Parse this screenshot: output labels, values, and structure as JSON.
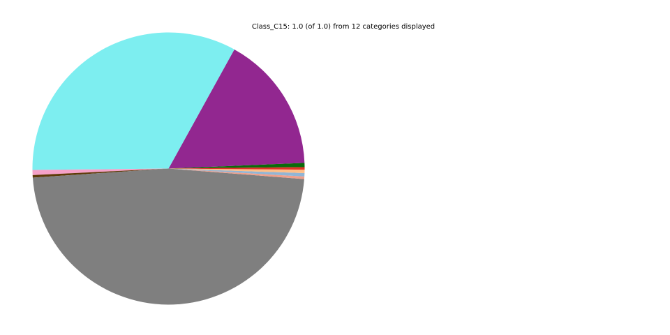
{
  "figure": {
    "background_color": "#ffffff"
  },
  "chart_data": {
    "type": "pie",
    "title": "Class_C15: 1.0 (of 1.0) from 12 categories displayed",
    "total_value": 1.0,
    "categories_stated_in_title": 12,
    "visible_slice_count": 10,
    "legend": "none",
    "axis": "none",
    "start_angle_deg": 0.6,
    "direction": "counterclockwise",
    "slices": [
      {
        "label": "slice-1-dark-green",
        "value": 0.005,
        "color": "#0a6b0a"
      },
      {
        "label": "slice-2-purple",
        "value": 0.163,
        "color": "#922790"
      },
      {
        "label": "slice-3-cyan",
        "value": 0.332,
        "color": "#7deef0"
      },
      {
        "label": "slice-4-pink",
        "value": 0.006,
        "color": "#f5a1c8"
      },
      {
        "label": "slice-5-dark-brown",
        "value": 0.003,
        "color": "#5e3a08"
      },
      {
        "label": "slice-6-gray",
        "value": 0.477,
        "color": "#7f7f7f"
      },
      {
        "label": "slice-7-salmon",
        "value": 0.003,
        "color": "#ef9f8b"
      },
      {
        "label": "slice-8-light-blue",
        "value": 0.004,
        "color": "#92b5d5"
      },
      {
        "label": "slice-9-light-orange",
        "value": 0.004,
        "color": "#ffbe87"
      },
      {
        "label": "slice-10-red",
        "value": 0.003,
        "color": "#e03227"
      }
    ]
  }
}
